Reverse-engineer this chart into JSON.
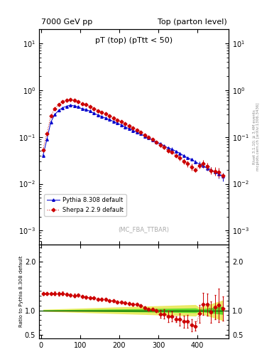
{
  "title_left": "7000 GeV pp",
  "title_right": "Top (parton level)",
  "main_title": "pT (top) (pTtt < 50)",
  "watermark": "(MC_FBA_TTBAR)",
  "right_label_top": "Rivet 3.1.10; ≥ 3.4M events",
  "right_label_bottom": "mcplots.cern.ch [arXiv:1306.3436]",
  "ylabel_ratio": "Ratio to Pythia 8.308 default",
  "ylim_main": [
    0.0005,
    20
  ],
  "ylim_ratio": [
    0.42,
    2.35
  ],
  "xmin": -5,
  "xmax": 480,
  "legend_pythia": "Pythia 8.308 default",
  "legend_sherpa": "Sherpa 2.2.9 default",
  "color_pythia": "#0000cc",
  "color_sherpa": "#cc0000",
  "bg_color": "#ffffff"
}
